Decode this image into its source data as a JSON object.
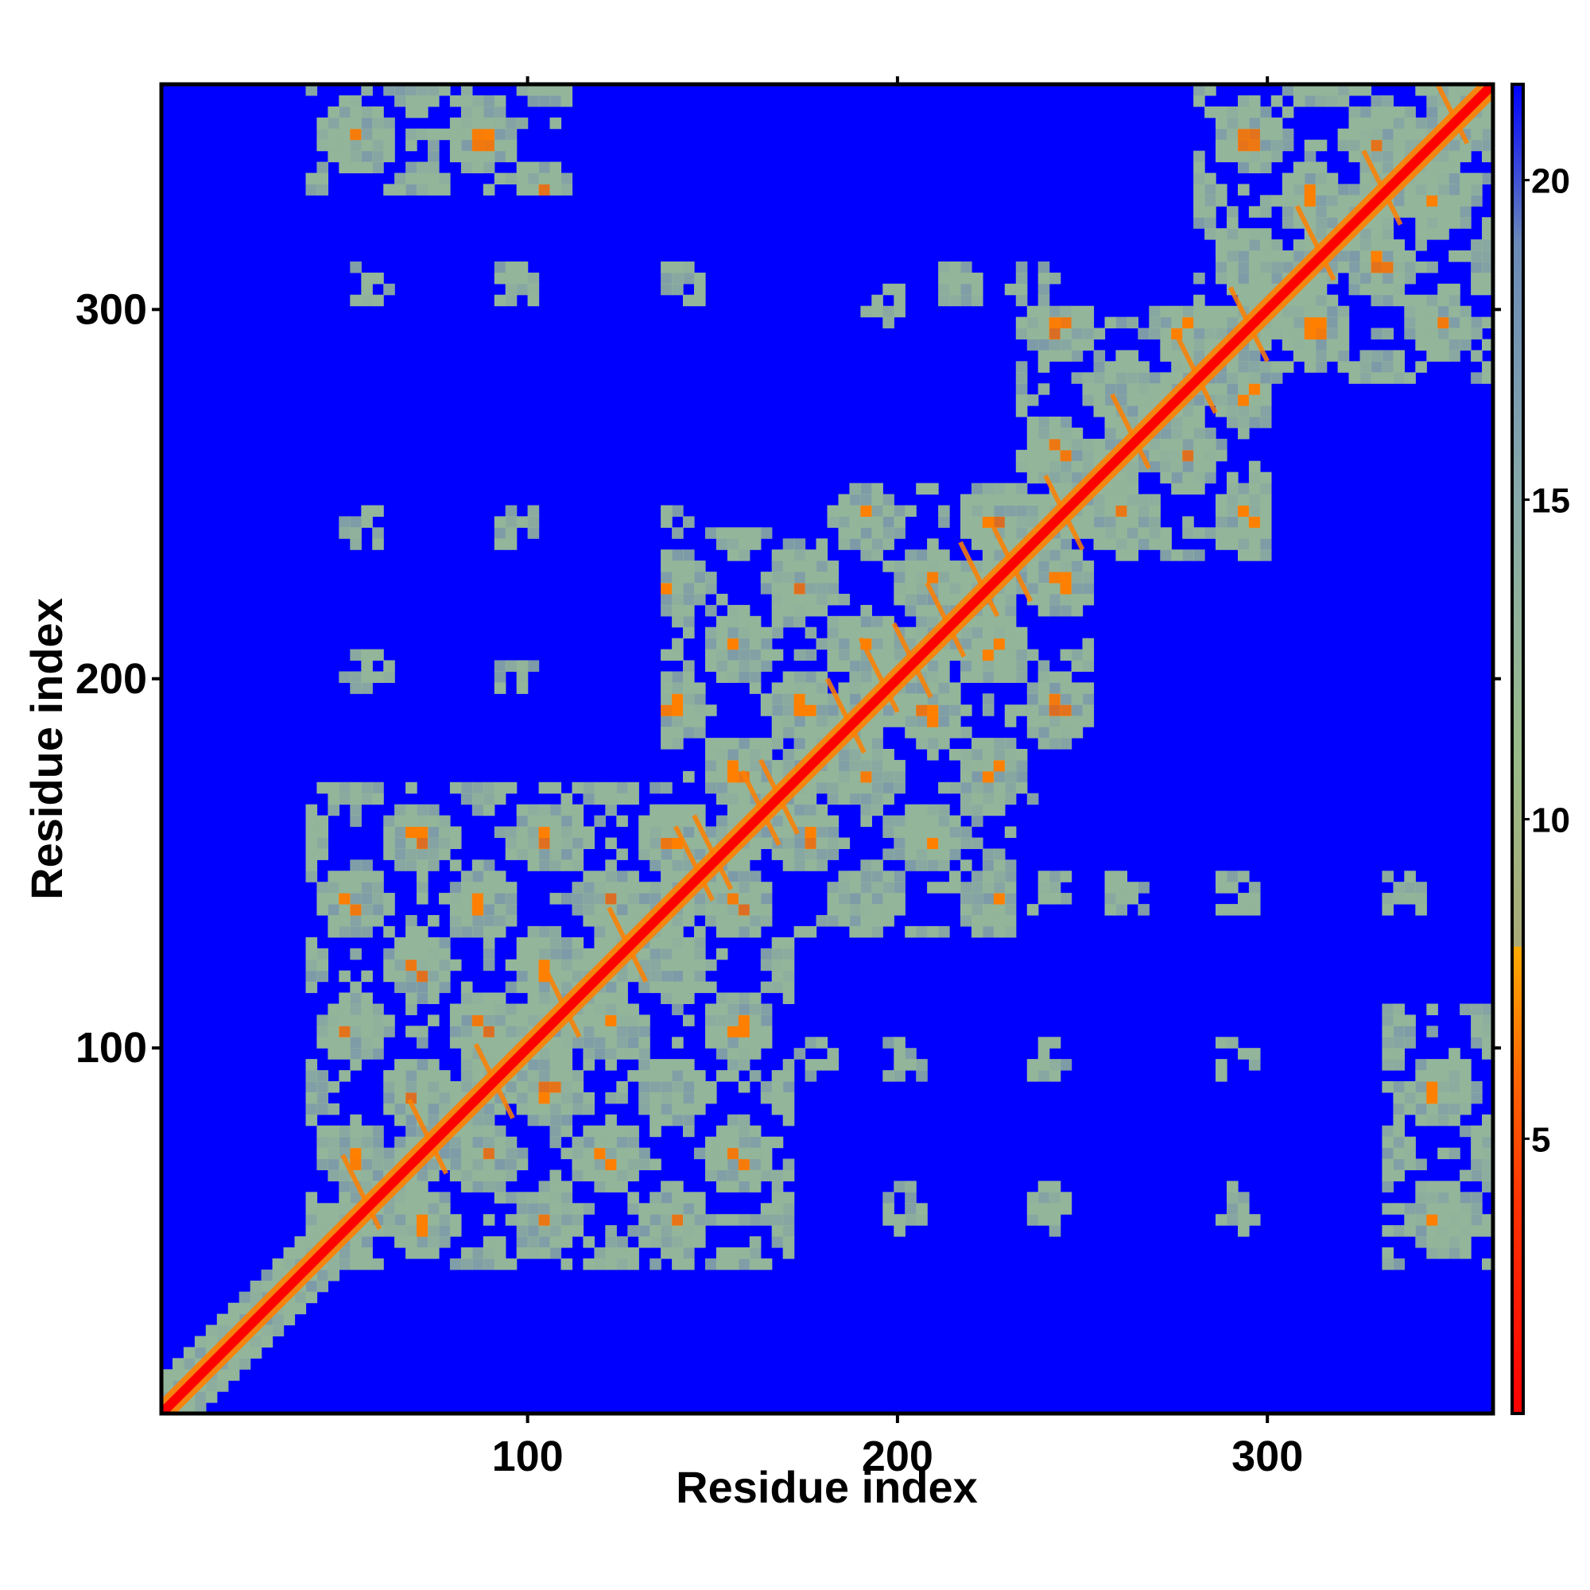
{
  "chart_data": {
    "type": "heatmap",
    "title": "",
    "xlabel": "Residue index",
    "ylabel": "Residue index",
    "xlim": [
      1,
      361
    ],
    "ylim": [
      1,
      361
    ],
    "x_ticks": [
      100,
      200,
      300
    ],
    "y_ticks": [
      100,
      200,
      300
    ],
    "colorbar": {
      "ticks": [
        5,
        10,
        15,
        20
      ],
      "range": [
        0.7,
        21.5
      ],
      "stops": [
        {
          "value": 0.7,
          "color": "#ff0000"
        },
        {
          "value": 4.0,
          "color": "#ff3300"
        },
        {
          "value": 6.0,
          "color": "#ff6600"
        },
        {
          "value": 8.0,
          "color": "#ffaa00"
        },
        {
          "value": 8.01,
          "color": "#aaaa77"
        },
        {
          "value": 11.0,
          "color": "#99bb88"
        },
        {
          "value": 15.0,
          "color": "#88aaaa"
        },
        {
          "value": 19.0,
          "color": "#6a8ab8"
        },
        {
          "value": 21.5,
          "color": "#0000ff"
        }
      ]
    },
    "background_color": "#0000ff",
    "diagonal_color": "#ff0000",
    "contact_color": "#93b59a",
    "close_contact_color": "#ff8000",
    "domain_blocks": [
      {
        "x0": 40,
        "x1": 170,
        "y0": 40,
        "y1": 170
      },
      {
        "x0": 135,
        "x1": 240,
        "y0": 165,
        "y1": 240
      },
      {
        "x0": 180,
        "x1": 250,
        "y0": 180,
        "y1": 250
      },
      {
        "x0": 230,
        "x1": 300,
        "y0": 230,
        "y1": 300
      },
      {
        "x0": 280,
        "x1": 361,
        "y0": 280,
        "y1": 361
      },
      {
        "x0": 40,
        "x1": 110,
        "y0": 330,
        "y1": 361
      },
      {
        "x0": 330,
        "x1": 361,
        "y0": 40,
        "y1": 110
      },
      {
        "x0": 170,
        "x1": 230,
        "y0": 130,
        "y1": 165
      }
    ],
    "sparse_spots": [
      [
        55,
        305
      ],
      [
        95,
        305
      ],
      [
        140,
        305
      ],
      [
        195,
        300
      ],
      [
        215,
        305
      ],
      [
        235,
        305
      ],
      [
        55,
        240
      ],
      [
        95,
        240
      ],
      [
        140,
        240
      ],
      [
        55,
        200
      ],
      [
        95,
        200
      ],
      [
        140,
        200
      ],
      [
        240,
        140
      ],
      [
        260,
        140
      ],
      [
        290,
        140
      ],
      [
        335,
        140
      ],
      [
        240,
        95
      ],
      [
        290,
        95
      ],
      [
        335,
        95
      ],
      [
        200,
        95
      ],
      [
        200,
        55
      ],
      [
        240,
        55
      ],
      [
        290,
        55
      ],
      [
        140,
        55
      ],
      [
        175,
        95
      ]
    ]
  }
}
